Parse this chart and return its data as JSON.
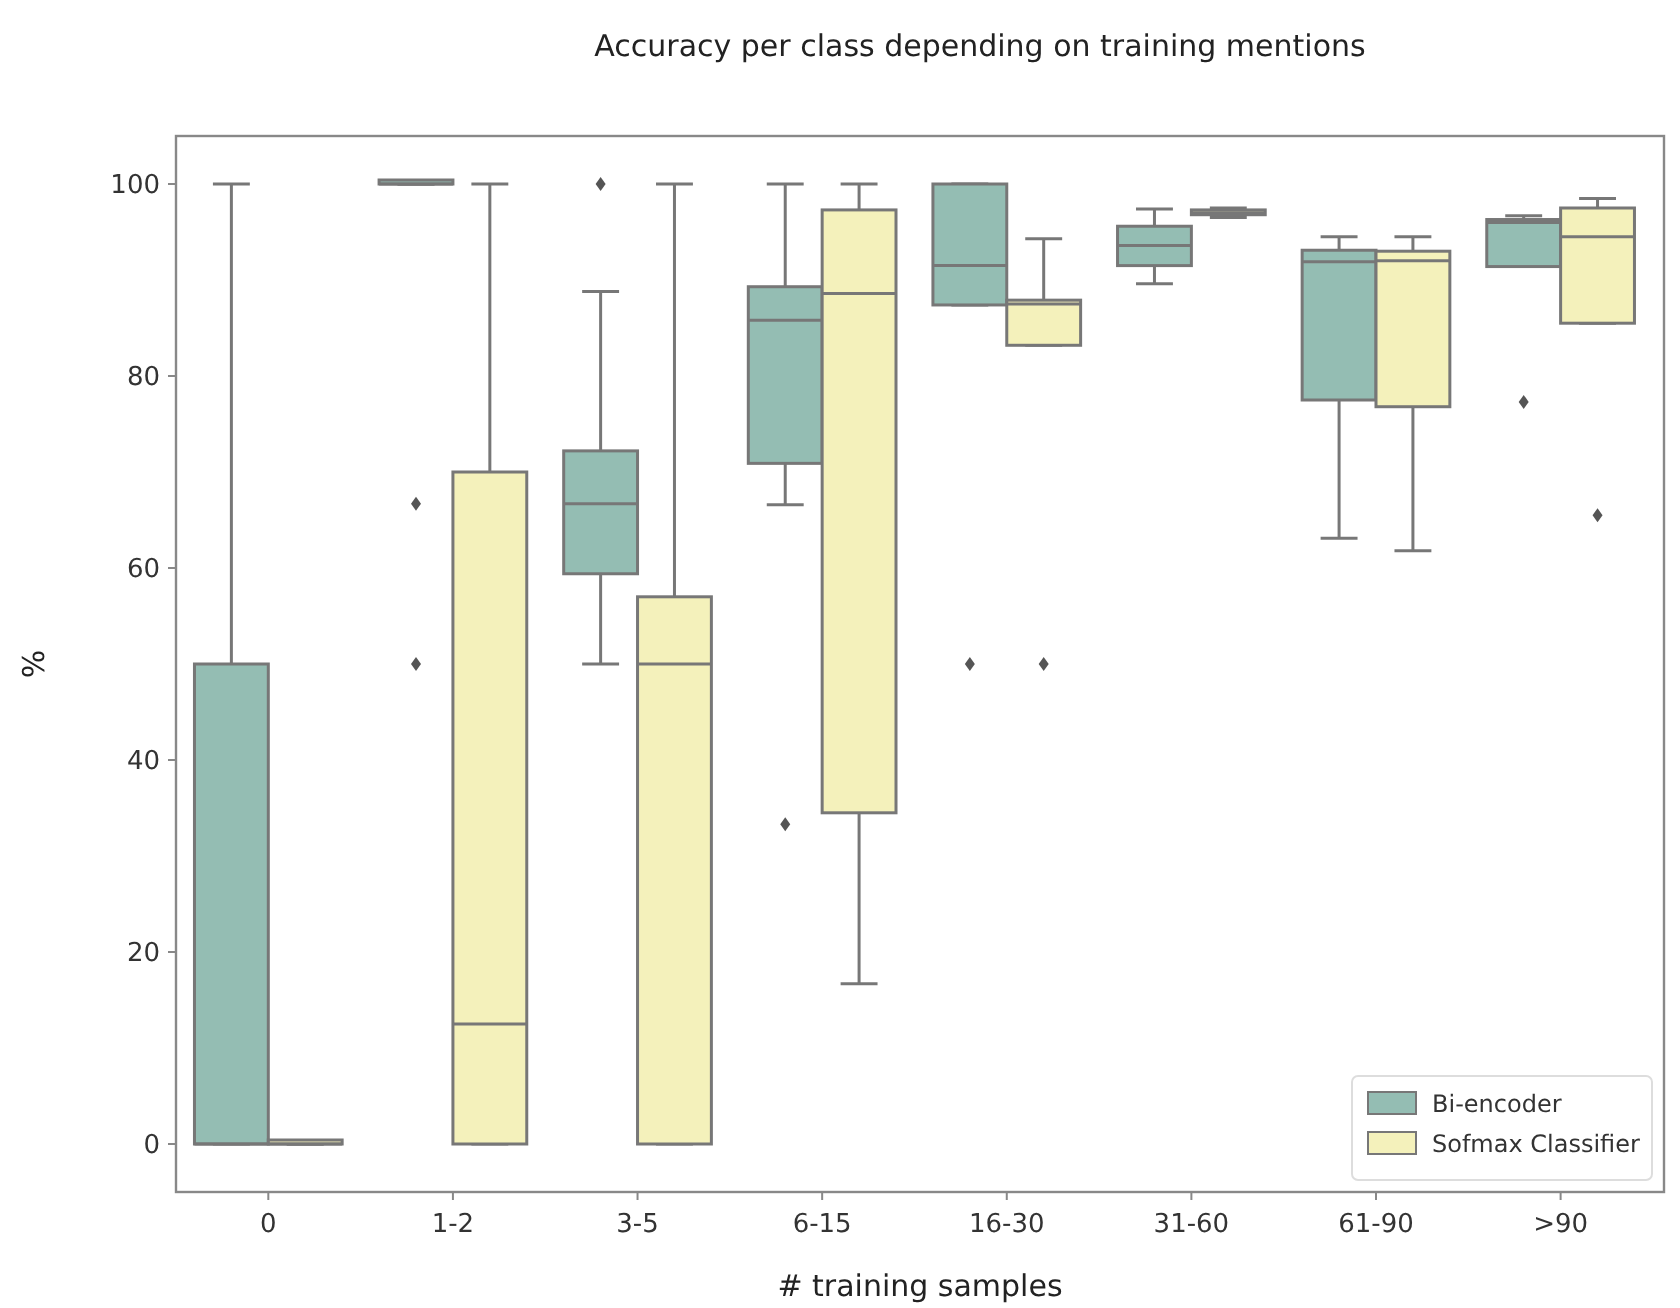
{
  "chart_data": {
    "type": "box",
    "title": "Accuracy per class depending on training mentions",
    "xlabel": "# training samples",
    "ylabel": "%",
    "categories": [
      "0",
      "1-2",
      "3-5",
      "6-15",
      "16-30",
      "31-60",
      "61-90",
      ">90"
    ],
    "ylim": [
      -5,
      105
    ],
    "yticks": [
      0,
      20,
      40,
      60,
      80,
      100
    ],
    "grid": false,
    "legend": "bottom right",
    "series": [
      {
        "name": "Bi-encoder",
        "color": "#94bdb3",
        "boxes": [
          {
            "low": 0,
            "q1": 0,
            "median": 0,
            "q3": 50,
            "high": 100
          },
          {
            "low": 100,
            "q1": 100,
            "median": 100,
            "q3": 100,
            "high": 100,
            "outliers": [
              66.7,
              50
            ]
          },
          {
            "low": 50,
            "q1": 59.4,
            "median": 66.7,
            "q3": 72.2,
            "high": 88.8,
            "outliers": [
              100
            ]
          },
          {
            "low": 66.6,
            "q1": 70.9,
            "median": 85.8,
            "q3": 89.3,
            "high": 100,
            "outliers": [
              33.3
            ]
          },
          {
            "low": 87.4,
            "q1": 87.4,
            "median": 91.5,
            "q3": 100,
            "high": 100,
            "outliers": [
              50
            ]
          },
          {
            "low": 89.6,
            "q1": 91.5,
            "median": 93.6,
            "q3": 95.6,
            "high": 97.4
          },
          {
            "low": 63.1,
            "q1": 77.5,
            "median": 91.9,
            "q3": 93.1,
            "high": 94.5
          },
          {
            "low": 91.4,
            "q1": 91.4,
            "median": 96,
            "q3": 96.3,
            "high": 96.7,
            "outliers": [
              77.3
            ]
          }
        ]
      },
      {
        "name": "Sofmax Classifier",
        "color": "#f4f1bb",
        "boxes": [
          {
            "low": 0,
            "q1": 0,
            "median": 0,
            "q3": 0,
            "high": 0
          },
          {
            "low": 0,
            "q1": 0,
            "median": 12.5,
            "q3": 70,
            "high": 100
          },
          {
            "low": 0,
            "q1": 0,
            "median": 50,
            "q3": 57,
            "high": 100
          },
          {
            "low": 16.7,
            "q1": 34.5,
            "median": 88.6,
            "q3": 97.3,
            "high": 100
          },
          {
            "low": 83.2,
            "q1": 83.2,
            "median": 87.5,
            "q3": 87.9,
            "high": 94.3,
            "outliers": [
              50
            ]
          },
          {
            "low": 96.5,
            "q1": 96.8,
            "median": 97,
            "q3": 97.3,
            "high": 97.5
          },
          {
            "low": 61.8,
            "q1": 76.8,
            "median": 92,
            "q3": 93,
            "high": 94.5
          },
          {
            "low": 85.5,
            "q1": 85.5,
            "median": 94.5,
            "q3": 97.5,
            "high": 98.5,
            "outliers": [
              65.5
            ]
          }
        ]
      }
    ]
  }
}
